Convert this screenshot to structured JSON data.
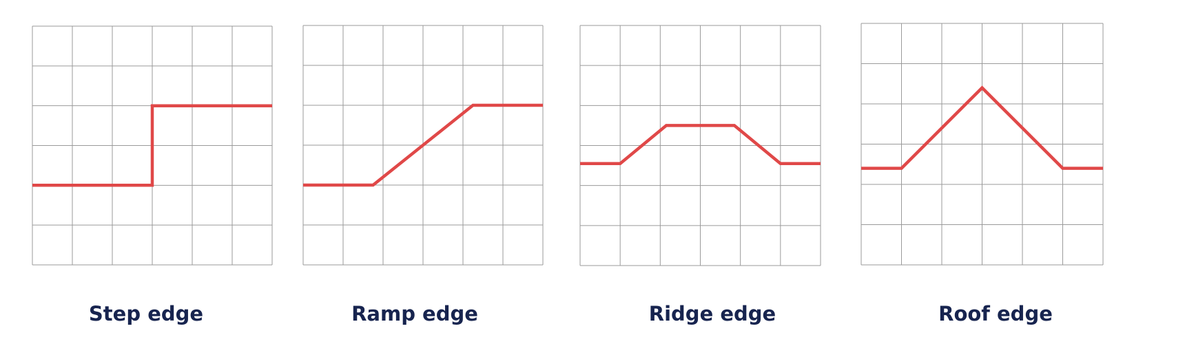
{
  "theme": {
    "grid_color": "#9a9a9a",
    "line_color": "#e04848",
    "label_color": "#17244f"
  },
  "panels": [
    {
      "id": "step",
      "label": "Step edge",
      "grid": {
        "cols": 6,
        "rows": 6
      },
      "profile": [
        [
          0,
          2
        ],
        [
          3,
          2
        ],
        [
          3,
          4
        ],
        [
          6,
          4
        ]
      ]
    },
    {
      "id": "ramp",
      "label": "Ramp edge",
      "grid": {
        "cols": 6,
        "rows": 6
      },
      "profile": [
        [
          0,
          2
        ],
        [
          1.75,
          2
        ],
        [
          4.25,
          4
        ],
        [
          6,
          4
        ]
      ]
    },
    {
      "id": "ridge",
      "label": "Ridge edge",
      "grid": {
        "cols": 6,
        "rows": 6
      },
      "profile": [
        [
          0,
          2.55
        ],
        [
          1,
          2.55
        ],
        [
          2.15,
          3.5
        ],
        [
          3.85,
          3.5
        ],
        [
          5,
          2.55
        ],
        [
          6,
          2.55
        ]
      ]
    },
    {
      "id": "roof",
      "label": "Roof edge",
      "grid": {
        "cols": 6,
        "rows": 6
      },
      "profile": [
        [
          0,
          2.4
        ],
        [
          1,
          2.4
        ],
        [
          3,
          4.4
        ],
        [
          5,
          2.4
        ],
        [
          6,
          2.4
        ]
      ]
    }
  ]
}
